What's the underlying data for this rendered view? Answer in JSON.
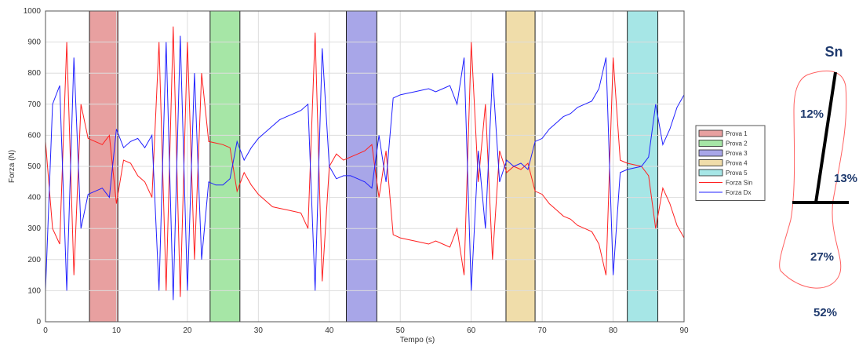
{
  "chart_data": {
    "type": "line",
    "xlabel": "Tempo (s)",
    "ylabel": "Forza (N)",
    "xlim": [
      0,
      90
    ],
    "ylim": [
      0,
      1000
    ],
    "xticks": [
      0,
      10,
      20,
      30,
      40,
      50,
      60,
      70,
      80,
      90
    ],
    "yticks": [
      0,
      100,
      200,
      300,
      400,
      500,
      600,
      700,
      800,
      900,
      1000
    ],
    "grid": true,
    "legend": "right",
    "spans": [
      {
        "name": "Prova 1",
        "color": "#e8a0a0",
        "range": [
          6.2,
          10.2
        ]
      },
      {
        "name": "Prova 2",
        "color": "#a6e6a6",
        "range": [
          23.2,
          27.4
        ]
      },
      {
        "name": "Prova 3",
        "color": "#a8a6e8",
        "range": [
          42.4,
          46.7
        ]
      },
      {
        "name": "Prova 4",
        "color": "#f0ddaa",
        "range": [
          64.9,
          69
        ]
      },
      {
        "name": "Prova 5",
        "color": "#a6e6e6",
        "range": [
          82,
          86.3
        ]
      }
    ],
    "x": [
      0,
      1,
      2,
      3,
      4,
      5,
      6,
      7,
      8,
      9,
      10,
      11,
      12,
      13,
      14,
      15,
      16,
      17,
      18,
      19,
      20,
      21,
      22,
      23,
      24,
      25,
      26,
      27,
      28,
      29,
      30,
      31,
      32,
      33,
      34,
      35,
      36,
      37,
      38,
      39,
      40,
      41,
      42,
      43,
      44,
      45,
      46,
      47,
      48,
      49,
      50,
      51,
      52,
      53,
      54,
      55,
      56,
      57,
      58,
      59,
      60,
      61,
      62,
      63,
      64,
      65,
      66,
      67,
      68,
      69,
      70,
      71,
      72,
      73,
      74,
      75,
      76,
      77,
      78,
      79,
      80,
      81,
      82,
      83,
      84,
      85,
      86,
      87,
      88,
      89,
      90
    ],
    "series": [
      {
        "name": "Forza Sin",
        "color": "#ff2020",
        "values": [
          580,
          300,
          250,
          900,
          150,
          700,
          590,
          580,
          570,
          600,
          380,
          520,
          510,
          470,
          450,
          400,
          900,
          100,
          950,
          80,
          900,
          200,
          800,
          580,
          575,
          570,
          560,
          420,
          480,
          440,
          410,
          390,
          370,
          365,
          360,
          355,
          350,
          300,
          930,
          130,
          500,
          540,
          520,
          530,
          540,
          550,
          570,
          400,
          550,
          280,
          270,
          265,
          260,
          255,
          250,
          260,
          250,
          240,
          300,
          150,
          900,
          450,
          700,
          200,
          550,
          480,
          500,
          490,
          510,
          420,
          410,
          380,
          360,
          340,
          330,
          310,
          300,
          290,
          250,
          150,
          850,
          520,
          510,
          505,
          500,
          470,
          300,
          430,
          380,
          310,
          270
        ]
      },
      {
        "name": "Forza Dx",
        "color": "#2020ff",
        "values": [
          100,
          700,
          760,
          100,
          850,
          300,
          410,
          420,
          430,
          400,
          620,
          560,
          580,
          590,
          560,
          600,
          100,
          900,
          70,
          920,
          100,
          800,
          200,
          450,
          440,
          440,
          460,
          580,
          520,
          560,
          590,
          610,
          630,
          650,
          660,
          670,
          680,
          700,
          100,
          880,
          500,
          460,
          470,
          470,
          460,
          450,
          430,
          600,
          450,
          720,
          730,
          735,
          740,
          745,
          750,
          740,
          750,
          760,
          700,
          850,
          100,
          550,
          300,
          800,
          450,
          520,
          500,
          510,
          490,
          580,
          590,
          620,
          640,
          660,
          670,
          690,
          700,
          710,
          750,
          850,
          150,
          480,
          490,
          495,
          500,
          530,
          700,
          570,
          620,
          690,
          730
        ]
      }
    ]
  },
  "foot_diagram": {
    "title": "Sn",
    "labels": [
      "12%",
      "13%",
      "27%",
      "52%"
    ]
  }
}
